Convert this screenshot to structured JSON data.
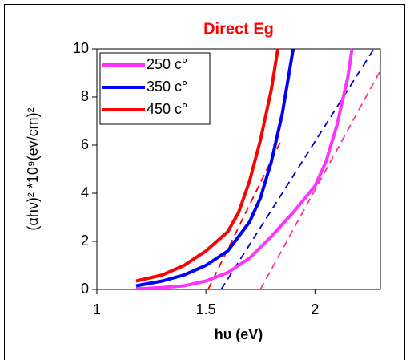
{
  "chart_data": {
    "type": "line",
    "title": "Direct Eg",
    "xlabel": "hυ (eV)",
    "ylabel": "(αhν)²  *10⁹(ev/cm)²",
    "xlim": [
      1,
      2.3
    ],
    "ylim": [
      0,
      10
    ],
    "xticks": [
      1,
      1.5,
      2
    ],
    "yticks": [
      0,
      2,
      4,
      6,
      8,
      10
    ],
    "legend": "upper left",
    "grid": false,
    "series": [
      {
        "name": "250 c°",
        "color": "#ff33ff",
        "x": [
          1.18,
          1.3,
          1.4,
          1.5,
          1.6,
          1.7,
          1.8,
          1.9,
          2.0,
          2.05,
          2.1,
          2.15,
          2.17
        ],
        "values": [
          0.02,
          0.08,
          0.15,
          0.35,
          0.7,
          1.3,
          2.2,
          3.2,
          4.3,
          5.3,
          6.8,
          8.8,
          10
        ]
      },
      {
        "name": "350 c°",
        "color": "#0000ff",
        "x": [
          1.18,
          1.3,
          1.4,
          1.5,
          1.6,
          1.7,
          1.75,
          1.8,
          1.85,
          1.9
        ],
        "values": [
          0.15,
          0.35,
          0.6,
          1.0,
          1.6,
          2.8,
          3.8,
          5.3,
          7.3,
          10
        ]
      },
      {
        "name": "450 c°",
        "color": "#ff0000",
        "x": [
          1.18,
          1.3,
          1.4,
          1.5,
          1.6,
          1.65,
          1.7,
          1.75,
          1.8,
          1.83
        ],
        "values": [
          0.35,
          0.6,
          1.0,
          1.6,
          2.4,
          3.2,
          4.5,
          6.2,
          8.3,
          10
        ]
      }
    ],
    "tangents": [
      {
        "color": "#ff3399",
        "x": [
          1.75,
          2.3
        ],
        "values": [
          0,
          9.1
        ]
      },
      {
        "color": "#0000cc",
        "x": [
          1.57,
          2.27
        ],
        "values": [
          0,
          10
        ]
      },
      {
        "color": "#ff0000",
        "x": [
          1.51,
          1.84
        ],
        "values": [
          0,
          6.1
        ]
      }
    ]
  }
}
